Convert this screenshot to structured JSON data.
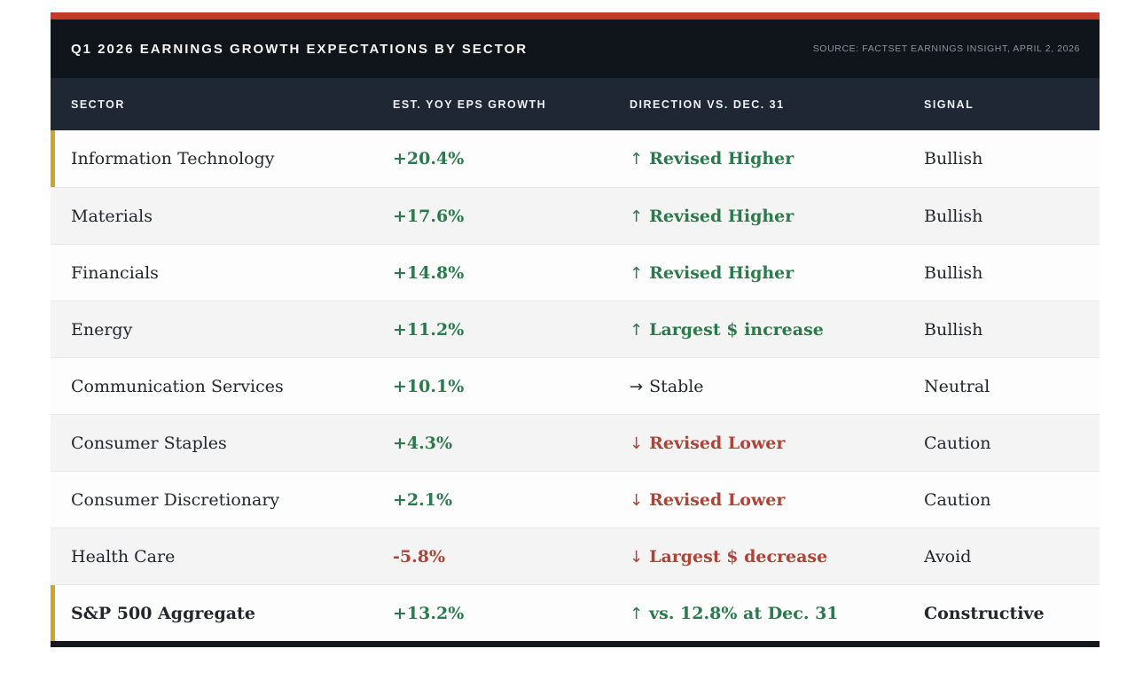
{
  "header": {
    "title": "Q1 2026 EARNINGS GROWTH EXPECTATIONS BY SECTOR",
    "source": "SOURCE: FACTSET EARNINGS INSIGHT, APRIL 2, 2026"
  },
  "table": {
    "columns": [
      "SECTOR",
      "EST. YOY EPS GROWTH",
      "DIRECTION VS. DEC. 31",
      "SIGNAL"
    ],
    "rows": [
      {
        "sector": "Information Technology",
        "eps": "+20.4%",
        "eps_tone": "positive",
        "arrow": "↑",
        "direction": "Revised Higher",
        "direction_tone": "positive",
        "signal": "Bullish",
        "accent": true,
        "emphasis": false
      },
      {
        "sector": "Materials",
        "eps": "+17.6%",
        "eps_tone": "positive",
        "arrow": "↑",
        "direction": "Revised Higher",
        "direction_tone": "positive",
        "signal": "Bullish",
        "accent": false,
        "emphasis": false
      },
      {
        "sector": "Financials",
        "eps": "+14.8%",
        "eps_tone": "positive",
        "arrow": "↑",
        "direction": "Revised Higher",
        "direction_tone": "positive",
        "signal": "Bullish",
        "accent": false,
        "emphasis": false
      },
      {
        "sector": "Energy",
        "eps": "+11.2%",
        "eps_tone": "positive",
        "arrow": "↑",
        "direction": "Largest $ increase",
        "direction_tone": "positive",
        "signal": "Bullish",
        "accent": false,
        "emphasis": false
      },
      {
        "sector": "Communication Services",
        "eps": "+10.1%",
        "eps_tone": "positive",
        "arrow": "→",
        "direction": "Stable",
        "direction_tone": "neutral",
        "signal": "Neutral",
        "accent": false,
        "emphasis": false
      },
      {
        "sector": "Consumer Staples",
        "eps": "+4.3%",
        "eps_tone": "positive",
        "arrow": "↓",
        "direction": "Revised Lower",
        "direction_tone": "negative",
        "signal": "Caution",
        "accent": false,
        "emphasis": false
      },
      {
        "sector": "Consumer Discretionary",
        "eps": "+2.1%",
        "eps_tone": "positive",
        "arrow": "↓",
        "direction": "Revised Lower",
        "direction_tone": "negative",
        "signal": "Caution",
        "accent": false,
        "emphasis": false
      },
      {
        "sector": "Health Care",
        "eps": "-5.8%",
        "eps_tone": "negative",
        "arrow": "↓",
        "direction": "Largest $ decrease",
        "direction_tone": "negative",
        "signal": "Avoid",
        "accent": false,
        "emphasis": false
      },
      {
        "sector": "S&P 500 Aggregate",
        "eps": "+13.2%",
        "eps_tone": "positive",
        "arrow": "↑",
        "direction": "vs. 12.8% at Dec. 31",
        "direction_tone": "positive",
        "signal": "Constructive",
        "accent": true,
        "emphasis": true
      }
    ]
  },
  "colors": {
    "top_bar": "#c23b2a",
    "title_bar_bg": "#10141b",
    "table_head_bg": "#202734",
    "positive": "#2b7a4c",
    "negative": "#ae4438",
    "neutral_text": "#23272d",
    "accent_gold": "#d1a42e",
    "row_alt_bg": "#f4f4f4"
  },
  "chart_data": {
    "type": "table",
    "title": "Q1 2026 Earnings Growth Expectations by Sector",
    "source": "FactSet Earnings Insight, April 2, 2026",
    "columns": [
      "Sector",
      "Est. YoY EPS Growth",
      "Direction vs. Dec. 31",
      "Signal"
    ],
    "rows": [
      [
        "Information Technology",
        "+20.4%",
        "↑ Revised Higher",
        "Bullish"
      ],
      [
        "Materials",
        "+17.6%",
        "↑ Revised Higher",
        "Bullish"
      ],
      [
        "Financials",
        "+14.8%",
        "↑ Revised Higher",
        "Bullish"
      ],
      [
        "Energy",
        "+11.2%",
        "↑ Largest $ increase",
        "Bullish"
      ],
      [
        "Communication Services",
        "+10.1%",
        "→ Stable",
        "Neutral"
      ],
      [
        "Consumer Staples",
        "+4.3%",
        "↓ Revised Lower",
        "Caution"
      ],
      [
        "Consumer Discretionary",
        "+2.1%",
        "↓ Revised Lower",
        "Caution"
      ],
      [
        "Health Care",
        "-5.8%",
        "↓ Largest $ decrease",
        "Avoid"
      ],
      [
        "S&P 500 Aggregate",
        "+13.2%",
        "↑ vs. 12.8% at Dec. 31",
        "Constructive"
      ]
    ],
    "eps_growth_values": [
      20.4,
      17.6,
      14.8,
      11.2,
      10.1,
      4.3,
      2.1,
      -5.8,
      13.2
    ]
  }
}
